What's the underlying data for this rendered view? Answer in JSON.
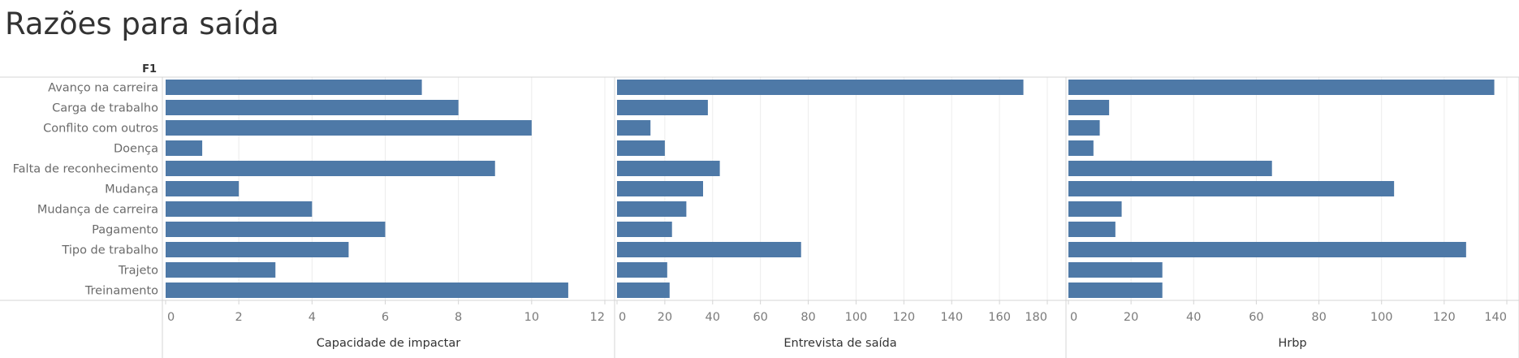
{
  "title": "Razões para saída",
  "chart_data": {
    "type": "bar",
    "orientation": "horizontal",
    "row_header": "F1",
    "bar_color": "#4e79a7",
    "grid": true,
    "categories": [
      "Avanço na carreira",
      "Carga de trabalho",
      "Conflito com outros",
      "Doença",
      "Falta de reconhecimento",
      "Mudança",
      "Mudança de carreira",
      "Pagamento",
      "Tipo de trabalho",
      "Trajeto",
      "Treinamento"
    ],
    "panels": [
      {
        "name": "Capacidade de impactar",
        "xlim": [
          0,
          12
        ],
        "ticks": [
          0,
          2,
          4,
          6,
          8,
          10,
          12
        ],
        "values": [
          7,
          8,
          10,
          1,
          9,
          2,
          4,
          6,
          5,
          3,
          11
        ]
      },
      {
        "name": "Entrevista de saída",
        "xlim": [
          0,
          180
        ],
        "ticks": [
          0,
          20,
          40,
          60,
          80,
          100,
          120,
          140,
          160,
          180
        ],
        "values": [
          170,
          38,
          14,
          20,
          43,
          36,
          29,
          23,
          77,
          21,
          22
        ]
      },
      {
        "name": "Hrbp",
        "xlim": [
          0,
          140
        ],
        "ticks": [
          0,
          20,
          40,
          60,
          80,
          100,
          120,
          140
        ],
        "values": [
          136,
          13,
          10,
          8,
          65,
          104,
          17,
          15,
          127,
          30,
          30
        ]
      }
    ]
  }
}
